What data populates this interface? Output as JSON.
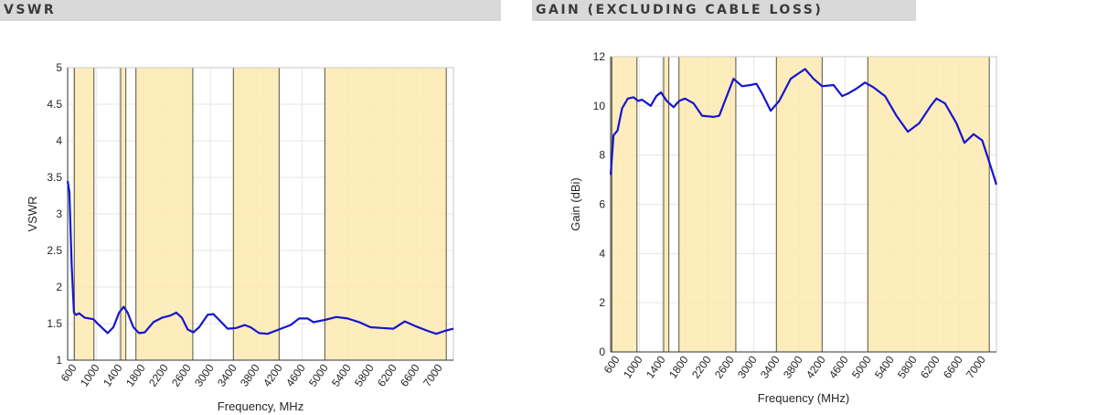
{
  "headers": {
    "left": "VSWR",
    "right": "GAIN (EXCLUDING CABLE LOSS)"
  },
  "colors": {
    "band": "#fde9b0",
    "line": "#1515d0",
    "header_bg": "#d9d9d9"
  },
  "chart_data": [
    {
      "type": "line",
      "title": "VSWR",
      "xlabel": "Frequency, MHz",
      "ylabel": "VSWR",
      "xlim": [
        500,
        7250
      ],
      "ylim": [
        1,
        5
      ],
      "grid": true,
      "xticks": [
        600,
        1000,
        1400,
        1800,
        2200,
        2600,
        3000,
        3400,
        3800,
        4200,
        4600,
        5000,
        5400,
        5800,
        6200,
        6600,
        7000
      ],
      "yticks": [
        1,
        1.5,
        2,
        2.5,
        3,
        3.5,
        4,
        4.5,
        5
      ],
      "ytick_labels": [
        "1",
        "1.5",
        "2",
        "2.5",
        "3",
        "3.5",
        "4",
        "4.5",
        "5"
      ],
      "bands": [
        [
          617,
          960
        ],
        [
          1427,
          1518
        ],
        [
          1695,
          2690
        ],
        [
          3400,
          4200
        ],
        [
          5000,
          7125
        ]
      ],
      "x": [
        500,
        530,
        570,
        610,
        650,
        700,
        800,
        950,
        1050,
        1200,
        1300,
        1400,
        1480,
        1550,
        1650,
        1750,
        1850,
        2000,
        2150,
        2300,
        2400,
        2500,
        2600,
        2700,
        2800,
        2950,
        3050,
        3150,
        3300,
        3450,
        3600,
        3700,
        3850,
        4000,
        4200,
        4400,
        4550,
        4700,
        4800,
        5000,
        5200,
        5400,
        5600,
        5800,
        6000,
        6200,
        6400,
        6600,
        6800,
        6950,
        7100,
        7250
      ],
      "y": [
        3.45,
        3.3,
        2.3,
        1.65,
        1.62,
        1.64,
        1.58,
        1.56,
        1.48,
        1.37,
        1.45,
        1.65,
        1.73,
        1.65,
        1.45,
        1.37,
        1.38,
        1.52,
        1.58,
        1.61,
        1.65,
        1.58,
        1.42,
        1.38,
        1.45,
        1.62,
        1.63,
        1.55,
        1.43,
        1.44,
        1.48,
        1.45,
        1.37,
        1.36,
        1.42,
        1.48,
        1.57,
        1.57,
        1.52,
        1.55,
        1.59,
        1.57,
        1.52,
        1.45,
        1.44,
        1.43,
        1.53,
        1.46,
        1.4,
        1.36,
        1.4,
        1.43
      ]
    },
    {
      "type": "line",
      "title": "GAIN (EXCLUDING CABLE LOSS)",
      "xlabel": "Frequency (MHz)",
      "ylabel": "Gain (dBi)",
      "xlim": [
        500,
        7250
      ],
      "ylim": [
        0,
        12
      ],
      "grid": true,
      "xticks": [
        600,
        1000,
        1400,
        1800,
        2200,
        2600,
        3000,
        3400,
        3800,
        4200,
        4600,
        5000,
        5400,
        5800,
        6200,
        6600,
        7000
      ],
      "yticks": [
        0,
        2,
        4,
        6,
        8,
        10,
        12
      ],
      "ytick_labels": [
        "0",
        "2",
        "4",
        "6",
        "8",
        "10",
        "12"
      ],
      "bands": [
        [
          520,
          960
        ],
        [
          1427,
          1518
        ],
        [
          1695,
          2690
        ],
        [
          3400,
          4200
        ],
        [
          5000,
          7125
        ]
      ],
      "x": [
        500,
        550,
        620,
        700,
        800,
        900,
        980,
        1050,
        1200,
        1300,
        1380,
        1480,
        1600,
        1700,
        1800,
        1950,
        2100,
        2300,
        2400,
        2500,
        2650,
        2800,
        2950,
        3050,
        3150,
        3300,
        3450,
        3650,
        3900,
        4050,
        4200,
        4400,
        4550,
        4650,
        4800,
        4950,
        5100,
        5300,
        5500,
        5700,
        5900,
        6100,
        6200,
        6350,
        6550,
        6690,
        6850,
        7000,
        7100,
        7250
      ],
      "y": [
        7.2,
        8.8,
        9.0,
        9.9,
        10.3,
        10.35,
        10.2,
        10.25,
        10.0,
        10.4,
        10.55,
        10.2,
        9.95,
        10.2,
        10.3,
        10.1,
        9.6,
        9.55,
        9.6,
        10.2,
        11.1,
        10.8,
        10.85,
        10.9,
        10.5,
        9.8,
        10.2,
        11.1,
        11.5,
        11.1,
        10.8,
        10.85,
        10.4,
        10.5,
        10.7,
        10.95,
        10.75,
        10.4,
        9.6,
        8.95,
        9.3,
        10.0,
        10.3,
        10.1,
        9.3,
        8.5,
        8.85,
        8.6,
        7.9,
        6.8
      ]
    }
  ]
}
